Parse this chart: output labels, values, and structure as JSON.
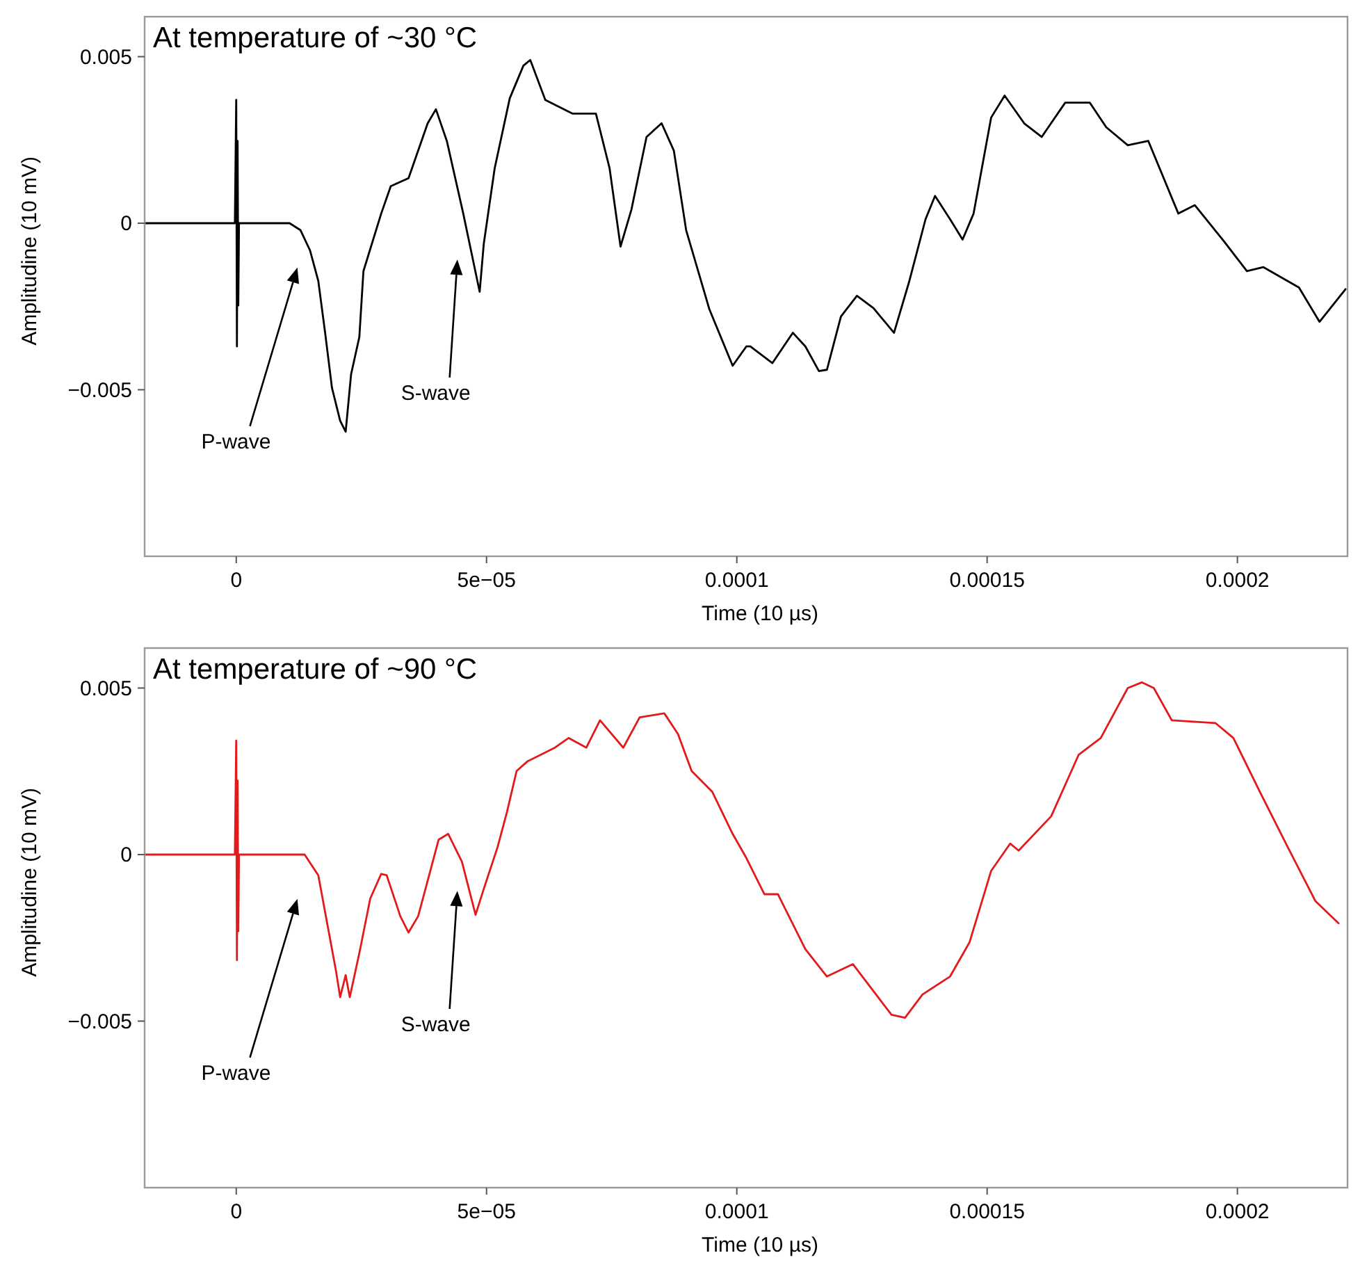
{
  "chart_data": [
    {
      "type": "line",
      "title": "At temperature of ~30 °C",
      "xlabel": "Time (10 µs)",
      "ylabel": "Amplitudine (10 mV)",
      "xlim": [
        -1.83e-05,
        0.000222
      ],
      "ylim": [
        -0.01,
        0.0062
      ],
      "xticks": [
        {
          "value": 0,
          "label": "0"
        },
        {
          "value": 5e-05,
          "label": "5e−05"
        },
        {
          "value": 0.0001,
          "label": "0.0001"
        },
        {
          "value": 0.00015,
          "label": "0.00015"
        },
        {
          "value": 0.0002,
          "label": "0.0002"
        }
      ],
      "yticks": [
        {
          "value": -0.005,
          "label": "−0.005"
        },
        {
          "value": 0,
          "label": "0"
        },
        {
          "value": 0.005,
          "label": "0.005"
        }
      ],
      "annotations": [
        "P-wave",
        "S-wave"
      ],
      "series": [
        {
          "color": "#000000",
          "x": [
            -1.83e-05,
            -1.64e-06,
            -2.7e-07,
            0,
            1.4e-07,
            2.7e-07,
            4.1e-07,
            5.5e-07,
            1.066e-05,
            1.284e-05,
            1.475e-05,
            1.639e-05,
            1.776e-05,
            1.912e-05,
            2.076e-05,
            2.186e-05,
            2.295e-05,
            2.459e-05,
            2.541e-05,
            2.896e-05,
            3.087e-05,
            3.442e-05,
            3.825e-05,
            3.989e-05,
            4.207e-05,
            4.535e-05,
            4.863e-05,
            4.945e-05,
            5.163e-05,
            5.464e-05,
            5.737e-05,
            5.874e-05,
            6.174e-05,
            6.721e-05,
            7.185e-05,
            7.458e-05,
            7.677e-05,
            7.895e-05,
            8.196e-05,
            8.497e-05,
            8.742e-05,
            8.988e-05,
            9.453e-05,
            9.917e-05,
            0.0001019,
            0.0001027,
            0.0001071,
            0.0001112,
            0.0001137,
            0.0001164,
            0.000118,
            0.0001208,
            0.000124,
            0.0001273,
            0.0001314,
            0.0001344,
            0.0001377,
            0.0001396,
            0.0001426,
            0.0001451,
            0.0001473,
            0.0001508,
            0.0001535,
            0.0001574,
            0.0001609,
            0.0001656,
            0.0001705,
            0.0001738,
            0.0001781,
            0.0001822,
            0.0001882,
            0.0001915,
            0.0001973,
            0.0002019,
            0.0002052,
            0.0002123,
            0.0002164,
            0.0002216
          ],
          "values": [
            0,
            0,
            0,
            0.0037,
            -0.0037,
            0.00247,
            -0.00247,
            0,
            0,
            -0.00021,
            -0.00082,
            -0.00173,
            -0.00329,
            -0.00494,
            -0.00593,
            -0.00626,
            -0.00453,
            -0.00342,
            -0.00144,
            0.00029,
            0.00111,
            0.00135,
            0.003,
            0.00342,
            0.00247,
            0.00029,
            -0.00206,
            -0.00062,
            0.00165,
            0.00375,
            0.00473,
            0.0049,
            0.0037,
            0.00329,
            0.00329,
            0.00165,
            -0.0007,
            0.00041,
            0.00259,
            0.003,
            0.00218,
            -0.00021,
            -0.00259,
            -0.00428,
            -0.0037,
            -0.0037,
            -0.0042,
            -0.00329,
            -0.0037,
            -0.00444,
            -0.0044,
            -0.0028,
            -0.00218,
            -0.00255,
            -0.00329,
            -0.00177,
            0.00012,
            0.00082,
            0.00012,
            -0.00049,
            0.00029,
            0.00317,
            0.00383,
            0.003,
            0.00259,
            0.00362,
            0.00362,
            0.00288,
            0.00234,
            0.00247,
            0.00029,
            0.00054,
            -0.00054,
            -0.00144,
            -0.00132,
            -0.00193,
            -0.00296,
            -0.00198
          ]
        }
      ]
    },
    {
      "type": "line",
      "title": "At temperature of ~90 °C",
      "xlabel": "Time (10 µs)",
      "ylabel": "Amplitudine (10 mV)",
      "xlim": [
        -1.83e-05,
        0.000222
      ],
      "ylim": [
        -0.01,
        0.0062
      ],
      "xticks": [
        {
          "value": 0,
          "label": "0"
        },
        {
          "value": 5e-05,
          "label": "5e−05"
        },
        {
          "value": 0.0001,
          "label": "0.0001"
        },
        {
          "value": 0.00015,
          "label": "0.00015"
        },
        {
          "value": 0.0002,
          "label": "0.0002"
        }
      ],
      "yticks": [
        {
          "value": -0.005,
          "label": "−0.005"
        },
        {
          "value": 0,
          "label": "0"
        },
        {
          "value": 0.005,
          "label": "0.005"
        }
      ],
      "annotations": [
        "P-wave",
        "S-wave"
      ],
      "series": [
        {
          "color": "#e31a1c",
          "x": [
            -1.83e-05,
            -1.64e-06,
            -2.7e-07,
            0,
            1.4e-07,
            2.7e-07,
            4.1e-07,
            5.5e-07,
            1.366e-05,
            1.639e-05,
            1.994e-05,
            2.076e-05,
            2.186e-05,
            2.268e-05,
            2.459e-05,
            2.677e-05,
            2.896e-05,
            3.005e-05,
            3.278e-05,
            3.442e-05,
            3.634e-05,
            3.825e-05,
            4.044e-05,
            4.235e-05,
            4.508e-05,
            4.781e-05,
            4.945e-05,
            5.218e-05,
            5.409e-05,
            5.601e-05,
            5.819e-05,
            6.366e-05,
            6.639e-05,
            6.994e-05,
            7.267e-05,
            7.732e-05,
            8.059e-05,
            8.551e-05,
            8.824e-05,
            9.097e-05,
            9.507e-05,
            9.917e-05,
            0.0001019,
            0.0001055,
            0.0001082,
            0.0001137,
            0.000118,
            0.0001232,
            0.0001309,
            0.0001336,
            0.0001371,
            0.0001426,
            0.0001465,
            0.0001508,
            0.0001546,
            0.0001563,
            0.0001628,
            0.0001683,
            0.0001727,
            0.0001781,
            0.0001809,
            0.0001833,
            0.0001869,
            0.0001956,
            0.0001992,
            0.0002046,
            0.0002101,
            0.0002156,
            0.0002202
          ],
          "values": [
            0,
            0,
            0,
            0.00342,
            -0.00317,
            0.00222,
            -0.0023,
            0,
            0,
            -0.00062,
            -0.0035,
            -0.00428,
            -0.00362,
            -0.00428,
            -0.00296,
            -0.00132,
            -0.00058,
            -0.00062,
            -0.00185,
            -0.00234,
            -0.00185,
            -0.00078,
            0.00045,
            0.00062,
            -0.00021,
            -0.00181,
            -0.00103,
            0.00021,
            0.00128,
            0.00251,
            0.0028,
            0.00321,
            0.0035,
            0.00321,
            0.00403,
            0.00321,
            0.00412,
            0.00424,
            0.00362,
            0.00251,
            0.00189,
            0.00062,
            -0.0001,
            -0.00119,
            -0.00119,
            -0.00284,
            -0.00366,
            -0.00329,
            -0.00481,
            -0.0049,
            -0.0042,
            -0.00366,
            -0.00263,
            -0.00049,
            0.00033,
            0.00012,
            0.00115,
            0.003,
            0.0035,
            0.005,
            0.00517,
            0.005,
            0.00403,
            0.00395,
            0.0035,
            0.00185,
            0.00021,
            -0.0014,
            -0.00206
          ]
        }
      ]
    }
  ]
}
